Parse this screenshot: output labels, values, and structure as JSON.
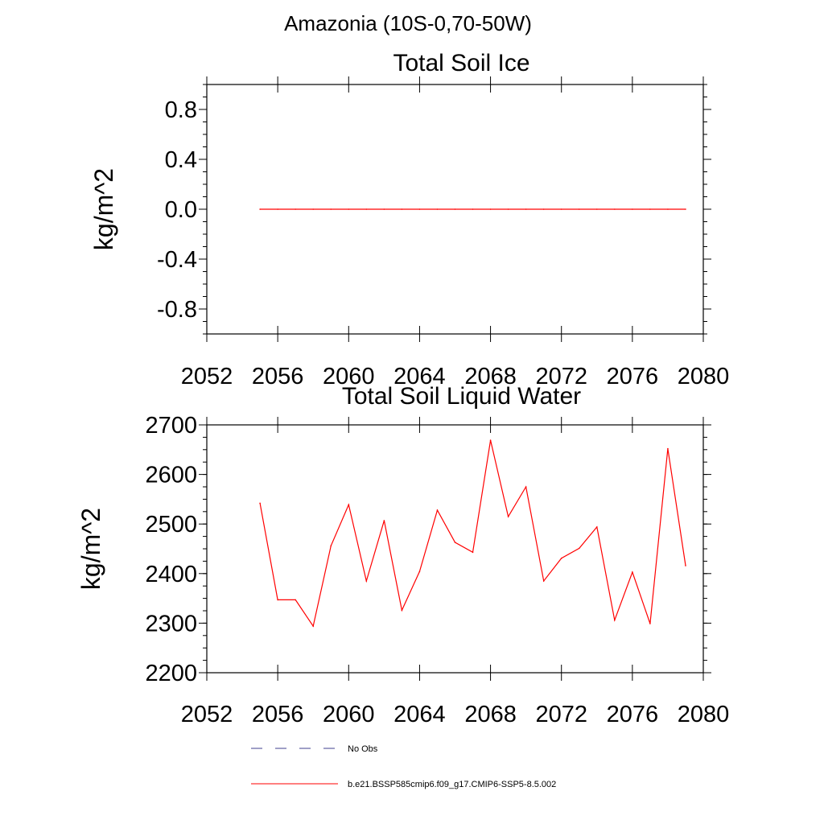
{
  "page": {
    "title": "Amazonia (10S-0,70-50W)"
  },
  "colors": {
    "model": "#ff0000",
    "obs": "#3f3f8f",
    "axis": "#000000",
    "background": "#ffffff"
  },
  "legend": {
    "position": "bottom",
    "entries": [
      {
        "label": "No Obs",
        "style": "dashed",
        "color": "#3f3f8f"
      },
      {
        "label": "b.e21.BSSP585cmip6.f09_g17.CMIP6-SSP5-8.5.002",
        "style": "solid",
        "color": "#ff0000"
      }
    ]
  },
  "chart_data": [
    {
      "type": "line",
      "title": "Total Soil Ice",
      "xlabel": "",
      "ylabel": "kg/m^2",
      "xlim": [
        2052,
        2080
      ],
      "ylim": [
        -1.0,
        1.0
      ],
      "xticks": [
        2052,
        2056,
        2060,
        2064,
        2068,
        2072,
        2076,
        2080
      ],
      "yticks": [
        -0.8,
        -0.4,
        0.0,
        0.4,
        0.8
      ],
      "ytick_labels": [
        "-0.8",
        "-0.4",
        "0.0",
        "0.4",
        "0.8"
      ],
      "grid": false,
      "x": [
        2055,
        2056,
        2057,
        2058,
        2059,
        2060,
        2061,
        2062,
        2063,
        2064,
        2065,
        2066,
        2067,
        2068,
        2069,
        2070,
        2071,
        2072,
        2073,
        2074,
        2075,
        2076,
        2077,
        2078,
        2079
      ],
      "series": [
        {
          "name": "b.e21.BSSP585cmip6.f09_g17.CMIP6-SSP5-8.5.002",
          "values": [
            0,
            0,
            0,
            0,
            0,
            0,
            0,
            0,
            0,
            0,
            0,
            0,
            0,
            0,
            0,
            0,
            0,
            0,
            0,
            0,
            0,
            0,
            0,
            0,
            0
          ]
        }
      ]
    },
    {
      "type": "line",
      "title": "Total Soil Liquid Water",
      "xlabel": "",
      "ylabel": "kg/m^2",
      "xlim": [
        2052,
        2080
      ],
      "ylim": [
        2200,
        2700
      ],
      "xticks": [
        2052,
        2056,
        2060,
        2064,
        2068,
        2072,
        2076,
        2080
      ],
      "yticks": [
        2200,
        2300,
        2400,
        2500,
        2600,
        2700
      ],
      "ytick_labels": [
        "2200",
        "2300",
        "2400",
        "2500",
        "2600",
        "2700"
      ],
      "grid": false,
      "x": [
        2055,
        2056,
        2057,
        2058,
        2059,
        2060,
        2061,
        2062,
        2063,
        2064,
        2065,
        2066,
        2067,
        2068,
        2069,
        2070,
        2071,
        2072,
        2073,
        2074,
        2075,
        2076,
        2077,
        2078,
        2079
      ],
      "series": [
        {
          "name": "b.e21.BSSP585cmip6.f09_g17.CMIP6-SSP5-8.5.002",
          "values": [
            2542,
            2347,
            2347,
            2294,
            2456,
            2539,
            2385,
            2507,
            2326,
            2404,
            2528,
            2463,
            2443,
            2669,
            2515,
            2575,
            2385,
            2431,
            2451,
            2494,
            2306,
            2403,
            2299,
            2652,
            2416
          ]
        }
      ]
    }
  ]
}
